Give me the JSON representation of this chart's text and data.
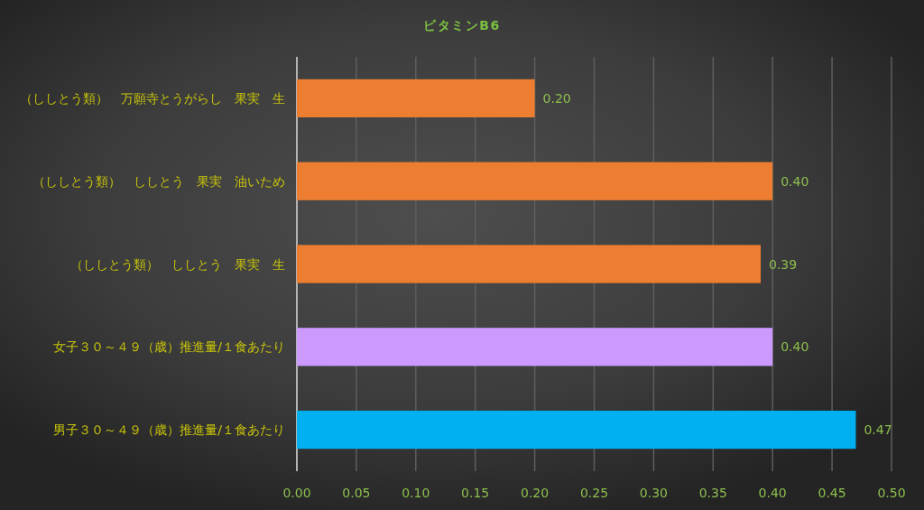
{
  "chart_data": {
    "type": "bar",
    "orientation": "horizontal",
    "title": "ビタミンB6",
    "categories": [
      "（ししとう類）　万願寺とうがらし　果実　生",
      "（ししとう類）　ししとう　果実　油いため",
      "（ししとう類）　ししとう　果実　生",
      "女子３０～４９（歳）推進量/１食あたり",
      "男子３０～４９（歳）推進量/１食あたり"
    ],
    "values": [
      0.2,
      0.4,
      0.39,
      0.4,
      0.47
    ],
    "colors": [
      "#ed7d31",
      "#ed7d31",
      "#ed7d31",
      "#cc99ff",
      "#00b0f0"
    ],
    "value_labels": [
      "0.20",
      "0.40",
      "0.39",
      "0.40",
      "0.47"
    ],
    "xlim": [
      0,
      0.5
    ],
    "xticks": [
      {
        "value": 0,
        "label": "0.00"
      },
      {
        "value": 0.05,
        "label": "0.05"
      },
      {
        "value": 0.1,
        "label": "0.10"
      },
      {
        "value": 0.15,
        "label": "0.15"
      },
      {
        "value": 0.2,
        "label": "0.20"
      },
      {
        "value": 0.25,
        "label": "0.25"
      },
      {
        "value": 0.3,
        "label": "0.30"
      },
      {
        "value": 0.35,
        "label": "0.35"
      },
      {
        "value": 0.4,
        "label": "0.40"
      },
      {
        "value": 0.45,
        "label": "0.45"
      },
      {
        "value": 0.5,
        "label": "0.50"
      }
    ],
    "grid": "x"
  }
}
